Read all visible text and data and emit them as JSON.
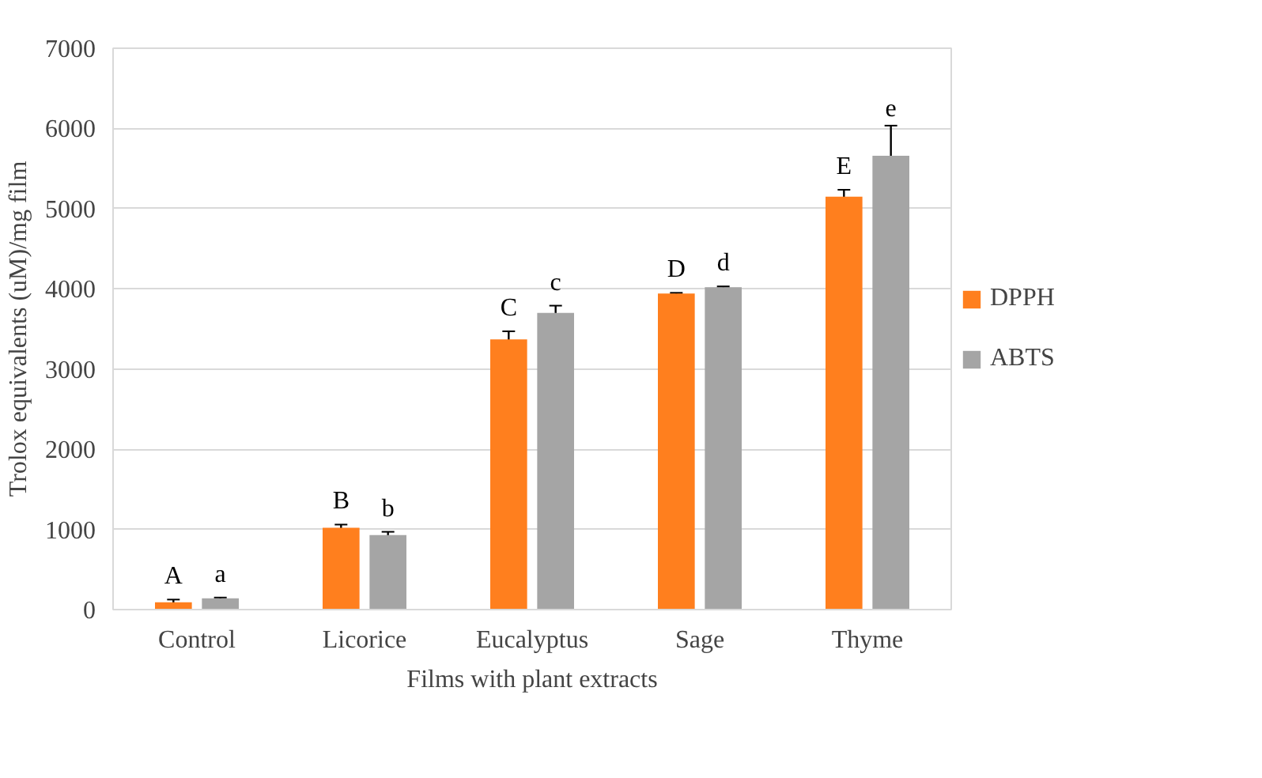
{
  "chart_data": {
    "type": "bar",
    "xlabel": "Films with plant extracts",
    "ylabel": "Trolox equivalents (uM)/mg film",
    "categories": [
      "Control",
      "Licorice",
      "Eucalyptus",
      "Sage",
      "Thyme"
    ],
    "series": [
      {
        "name": "DPPH",
        "color": "#ff7f1e",
        "values": [
          90,
          1020,
          3370,
          3940,
          5150
        ],
        "errors": [
          35,
          40,
          100,
          10,
          85
        ],
        "value_labels": [
          "A",
          "B",
          "C",
          "D",
          "E"
        ]
      },
      {
        "name": "ABTS",
        "color": "#a5a5a5",
        "values": [
          140,
          930,
          3700,
          4020,
          5660
        ],
        "errors": [
          10,
          40,
          90,
          10,
          375
        ],
        "value_labels": [
          "a",
          "b",
          "c",
          "d",
          "e"
        ]
      }
    ],
    "ylim": [
      0,
      7000
    ],
    "yticks": [
      0,
      1000,
      2000,
      3000,
      4000,
      5000,
      6000,
      7000
    ],
    "grid": "y",
    "legend": "right"
  }
}
